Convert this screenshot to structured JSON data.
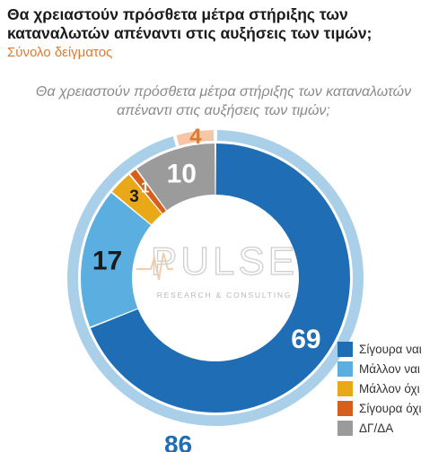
{
  "header": {
    "title": "Θα χρειαστούν πρόσθετα μέτρα στήριξης των καταναλωτών απέναντι στις αυξήσεις των τιμών;",
    "subtitle": "Σύνολο δείγματος"
  },
  "watermark": {
    "brand": "PULSE",
    "tagline": "RESEARCH & CONSULTING"
  },
  "chart_data": {
    "type": "pie",
    "subtype": "donut",
    "title": "Θα χρειαστούν πρόσθετα μέτρα στήριξης των καταναλωτών απέναντι στις αυξήσεις των τιμών;",
    "categories": [
      "Σίγουρα ναι",
      "Μάλλον ναι",
      "Μάλλον όχι",
      "Σίγουρα όχι",
      "ΔΓ/ΔΑ"
    ],
    "values": [
      69,
      17,
      3,
      1,
      10
    ],
    "colors": [
      "#1f6eb5",
      "#5aaee0",
      "#e8a817",
      "#d75f1c",
      "#9b9b9b"
    ],
    "label_colors": [
      "#ffffff",
      "#1a1a1a",
      "#1a1a1a",
      "#ffffff",
      "#ffffff"
    ],
    "outer_ring": [
      {
        "label": "86",
        "value": 86,
        "color": "#a9cfe9",
        "label_color": "#1f6eb5"
      },
      {
        "label": "4",
        "value": 4,
        "color": "#f6c6a6",
        "label_color": "#e07a2e"
      }
    ],
    "legend_position": "bottom-right"
  }
}
